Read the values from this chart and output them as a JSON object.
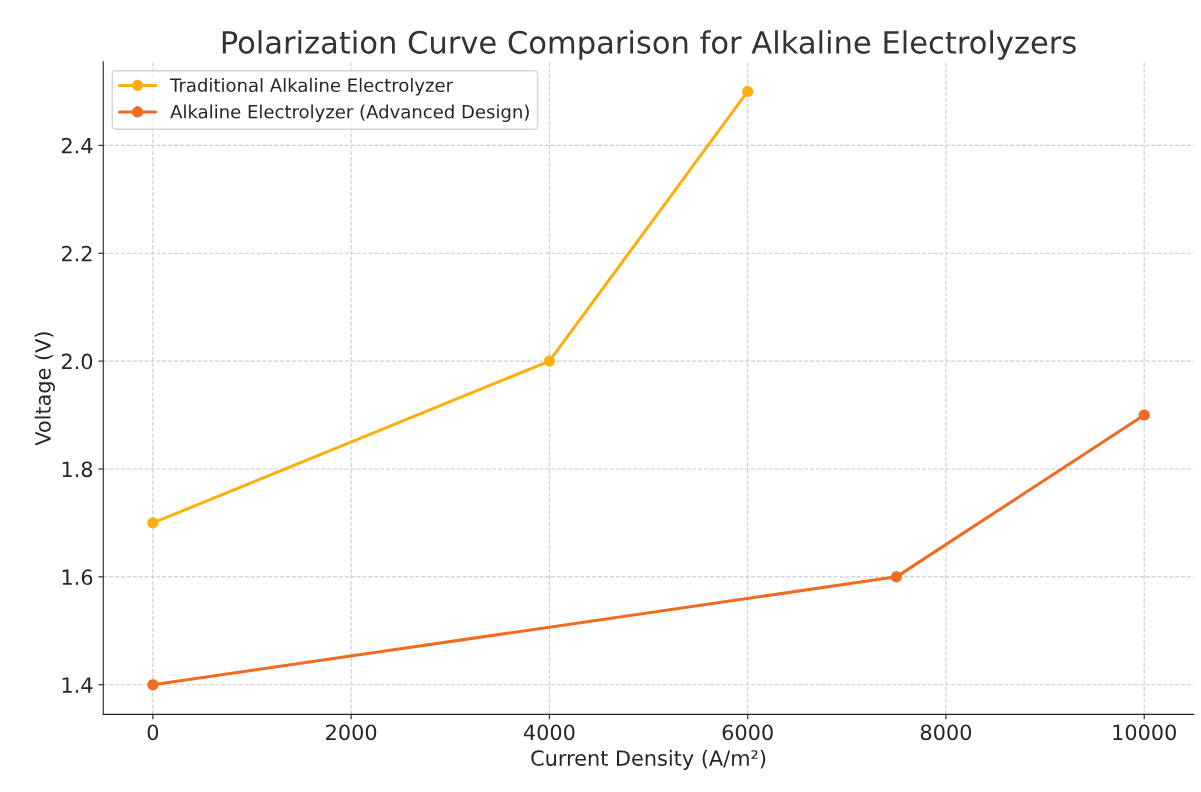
{
  "chart_data": {
    "type": "line",
    "title": "Polarization Curve Comparison for Alkaline Electrolyzers",
    "xlabel": "Current Density (A/m²)",
    "ylabel": "Voltage (V)",
    "series": [
      {
        "name": "Traditional Alkaline Electrolyzer",
        "color": "#fbb010",
        "x": [
          0,
          4000,
          6000
        ],
        "values": [
          1.7,
          2.0,
          2.5
        ]
      },
      {
        "name": "Alkaline Electrolyzer (Advanced Design)",
        "color": "#f26b22",
        "x": [
          0,
          7500,
          10000
        ],
        "values": [
          1.4,
          1.6,
          1.9
        ]
      }
    ],
    "xlim": [
      -500,
      10500
    ],
    "xticks": [
      0,
      2000,
      4000,
      6000,
      8000,
      10000
    ],
    "ylim": [
      1.345,
      2.555
    ],
    "yticks": [
      {
        "value": 1.4,
        "label": "1.4"
      },
      {
        "value": 1.6,
        "label": "1.6"
      },
      {
        "value": 1.8,
        "label": "1.8"
      },
      {
        "value": 2.0,
        "label": "2.0"
      },
      {
        "value": 2.2,
        "label": "2.2"
      },
      {
        "value": 2.4,
        "label": "2.4"
      }
    ],
    "grid": true,
    "legend": "top left",
    "marker": "circle",
    "line_style": "solid"
  }
}
